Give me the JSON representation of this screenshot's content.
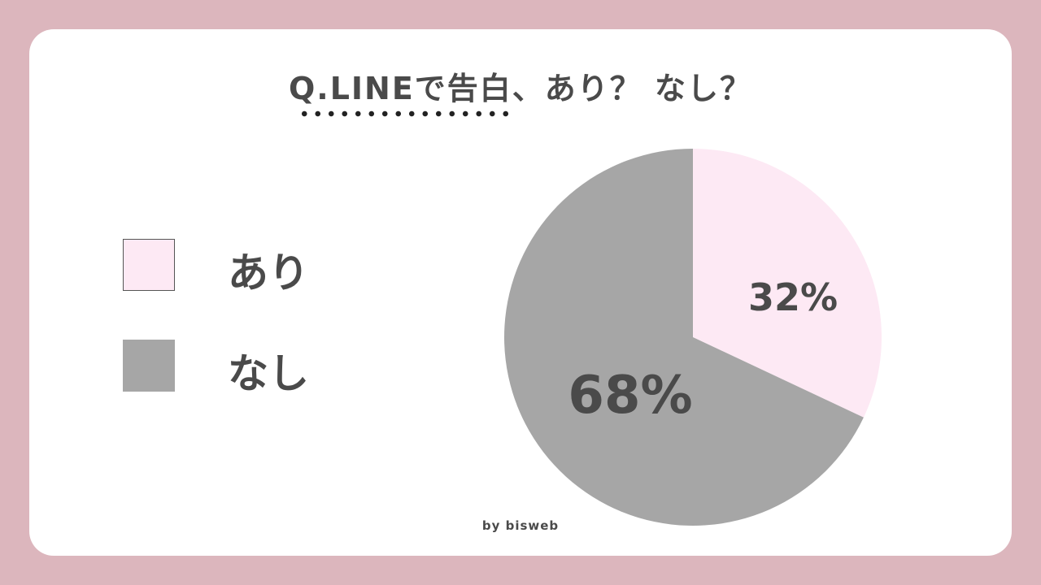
{
  "chart_data": {
    "type": "pie",
    "title": "Q.LINEで告白、あり？ なし？",
    "categories": [
      "あり",
      "なし"
    ],
    "values": [
      32,
      68
    ],
    "labels": [
      "32%",
      "68%"
    ],
    "colors": [
      "#fde9f4",
      "#a6a6a6"
    ],
    "legend": "left"
  },
  "credit": "by bisweb"
}
